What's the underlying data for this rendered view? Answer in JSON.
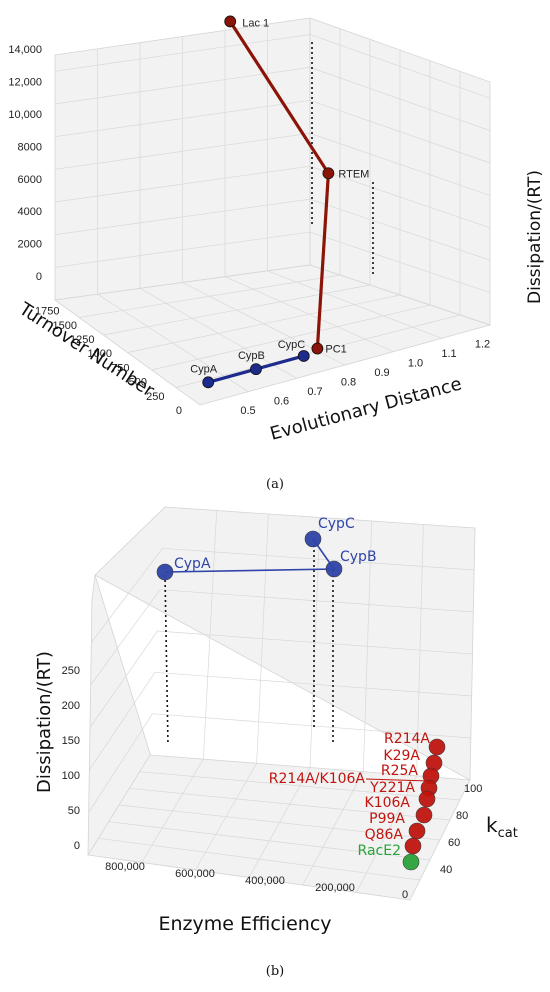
{
  "chart_data": [
    {
      "type": "scatter",
      "panel": "(a)",
      "xlabel": "Evolutionary Distance",
      "ylabel": "Turnover Number",
      "zlabel": "Dissipation/(RT)",
      "x_ticks": [
        "0.5",
        "0.6",
        "0.7",
        "0.8",
        "0.9",
        "1.0",
        "1.1",
        "1.2"
      ],
      "y_ticks": [
        "0",
        "250",
        "500",
        "750",
        "1000",
        "1250",
        "1500",
        "1750"
      ],
      "z_ticks": [
        "0",
        "2000",
        "4000",
        "6000",
        "8000",
        "10,000",
        "12,000",
        "14,000"
      ],
      "grid": true,
      "series": [
        {
          "color": "#1c2b8c",
          "points": [
            {
              "label": "CypA",
              "x": 0.48,
              "y": 250,
              "z": 80
            },
            {
              "label": "CypB",
              "x": 0.62,
              "y": 250,
              "z": 80
            },
            {
              "label": "CypC",
              "x": 0.76,
              "y": 250,
              "z": 80
            }
          ]
        },
        {
          "color": "#8b1408",
          "points": [
            {
              "label": "PC1",
              "x": 0.8,
              "y": 250,
              "z": 300
            },
            {
              "label": "RTEM",
              "x": 1.0,
              "y": 1000,
              "z": 7200
            },
            {
              "label": "Lac 1",
              "x": 0.88,
              "y": 1750,
              "z": 14500
            }
          ]
        }
      ]
    },
    {
      "type": "scatter",
      "panel": "(b)",
      "xlabel": "Enzyme Efficiency",
      "ylabel": "k",
      "ylabel_sub": "cat",
      "zlabel": "Dissipation/(RT)",
      "x_ticks": [
        "0",
        "200,000",
        "400,000",
        "600,000",
        "800,000"
      ],
      "y_ticks": [
        "40",
        "60",
        "80",
        "100"
      ],
      "z_ticks": [
        "0",
        "50",
        "100",
        "150",
        "200",
        "250"
      ],
      "grid": true,
      "series": [
        {
          "color": "#2e44a8",
          "points": [
            {
              "label": "CypA",
              "x": 900000,
              "y": 70,
              "z": 280
            },
            {
              "label": "CypC",
              "x": 300000,
              "y": 70,
              "z": 320
            },
            {
              "label": "CypB",
              "x": 220000,
              "y": 70,
              "z": 280
            }
          ]
        },
        {
          "color": "#c0150f",
          "points": [
            {
              "label": "R214A",
              "x": 8000,
              "y": 105,
              "z": 15
            },
            {
              "label": "K29A",
              "x": 8000,
              "y": 100,
              "z": 14
            },
            {
              "label": "R25A",
              "x": 8000,
              "y": 95,
              "z": 13
            },
            {
              "label": "R214A/K106A",
              "x": 8000,
              "y": 90,
              "z": 12
            },
            {
              "label": "Y221A",
              "x": 8000,
              "y": 85,
              "z": 11
            },
            {
              "label": "K106A",
              "x": 8000,
              "y": 78,
              "z": 10
            },
            {
              "label": "P99A",
              "x": 8000,
              "y": 70,
              "z": 9
            },
            {
              "label": "Q86A",
              "x": 8000,
              "y": 62,
              "z": 8
            }
          ]
        },
        {
          "color": "#2aa33a",
          "points": [
            {
              "label": "RacE2",
              "x": 8000,
              "y": 55,
              "z": 6
            }
          ]
        }
      ]
    }
  ],
  "captions": {
    "a": "(a)",
    "b": "(b)"
  }
}
